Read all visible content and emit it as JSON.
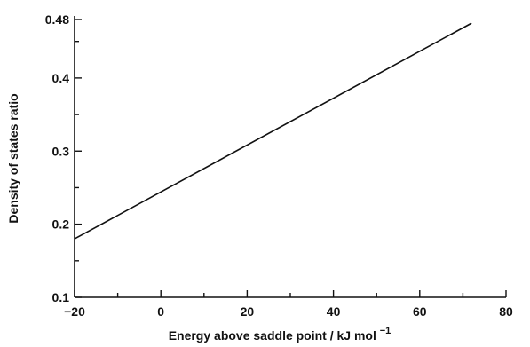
{
  "chart_data": {
    "type": "line",
    "xlabel": "Energy above saddle point / kJ mol",
    "xlabel_superscript": "−1",
    "ylabel": "Density of states ratio",
    "xlim": [
      -20,
      80
    ],
    "ylim": [
      0.1,
      0.48
    ],
    "x_ticks": [
      -20,
      0,
      20,
      40,
      60,
      80
    ],
    "x_tick_labels": [
      "−20",
      "0",
      "20",
      "40",
      "60",
      "80"
    ],
    "y_ticks": [
      0.1,
      0.2,
      0.3,
      0.4,
      0.48
    ],
    "y_tick_labels": [
      "0.1",
      "0.2",
      "0.3",
      "0.4",
      "0.48"
    ],
    "x_minor_step": 10,
    "y_minor_step": 0.05,
    "grid": false,
    "series": [
      {
        "x": [
          -20,
          72
        ],
        "y": [
          0.18,
          0.475
        ]
      }
    ]
  }
}
